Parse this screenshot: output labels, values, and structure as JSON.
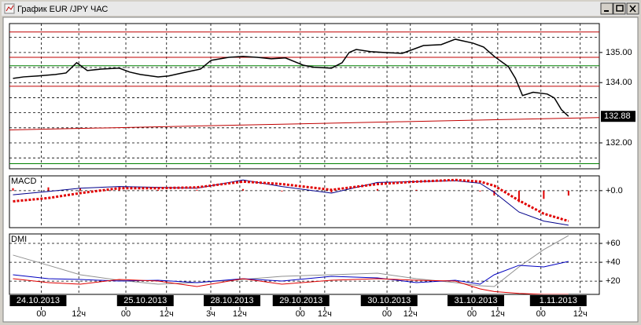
{
  "window": {
    "title": "График EUR /JPY ЧАС"
  },
  "chart_data": [
    {
      "type": "line",
      "x": [
        -8,
        -5,
        -1,
        4,
        7,
        10,
        13,
        17,
        22,
        25,
        28,
        33,
        36,
        41,
        45,
        48,
        53,
        57,
        61,
        65,
        69,
        74,
        77,
        82,
        85,
        87,
        89,
        93,
        97,
        102,
        105,
        108,
        113,
        117,
        122,
        125,
        128,
        132,
        134,
        136,
        139,
        143,
        145,
        147,
        149
      ],
      "values": [
        134.14,
        134.19,
        134.22,
        134.27,
        134.32,
        134.66,
        134.4,
        134.45,
        134.48,
        134.35,
        134.27,
        134.19,
        134.22,
        134.35,
        134.45,
        134.74,
        134.84,
        134.87,
        134.84,
        134.79,
        134.82,
        134.58,
        134.51,
        134.48,
        134.66,
        135.0,
        135.1,
        135.03,
        135.0,
        134.97,
        135.1,
        135.23,
        135.26,
        135.44,
        135.31,
        135.18,
        134.87,
        134.53,
        134.14,
        133.57,
        133.68,
        133.62,
        133.49,
        133.1,
        132.88
      ],
      "color": "#000000",
      "xlim": [
        -9,
        157.7
      ],
      "ylim": [
        131.14,
        135.96
      ],
      "yticks": [
        {
          "value": 135,
          "label": "135.00"
        },
        {
          "value": 134,
          "label": "134.00"
        },
        {
          "value": 132,
          "label": "132.00"
        }
      ],
      "ygrid": [
        131.5,
        132,
        132.5,
        133,
        133.5,
        134,
        134.5,
        135,
        135.5
      ],
      "levels": [
        {
          "value": 135.68,
          "color": "#c00000"
        },
        {
          "value": 134.84,
          "color": "#c00000"
        },
        {
          "value": 134.56,
          "color": "#008000"
        },
        {
          "value": 133.88,
          "color": "#c00000"
        },
        {
          "value": 131.31,
          "color": "#008000"
        }
      ],
      "trend": {
        "x": [
          -9,
          157.7
        ],
        "values": [
          132.43,
          132.84
        ],
        "color": "#c00000"
      },
      "last_value": 132.88
    },
    {
      "type": "macd",
      "label": "MACD",
      "x": [
        -8,
        2,
        11,
        22,
        33,
        44,
        57,
        68,
        82,
        95,
        106,
        117,
        124,
        128,
        135,
        142,
        149
      ],
      "xlim": [
        -9,
        157.7
      ],
      "ylim": [
        -0.45,
        0.18
      ],
      "yticks": [
        {
          "value": 0,
          "label": "+0.0"
        }
      ],
      "series": [
        {
          "color": "#00008b",
          "style": "solid",
          "values": [
            -0.05,
            -0.01,
            0.03,
            0.05,
            0.04,
            0.03,
            0.13,
            0.05,
            -0.03,
            0.1,
            0.11,
            0.12,
            0.09,
            -0.02,
            -0.26,
            -0.37,
            -0.42
          ]
        },
        {
          "color": "#e00000",
          "style": "dotted",
          "values": [
            -0.13,
            -0.09,
            -0.03,
            0.03,
            0.03,
            0.04,
            0.11,
            0.08,
            0.01,
            0.08,
            0.11,
            0.13,
            0.11,
            0.06,
            -0.12,
            -0.28,
            -0.37
          ]
        }
      ],
      "histogram": {
        "color": "#e00000",
        "values": [
          0.03,
          0.04,
          0.03,
          0.02,
          0.01,
          0.01,
          0.02,
          -0.01,
          -0.02,
          0.02,
          0.01,
          0.0,
          -0.01,
          -0.06,
          -0.14,
          -0.1,
          -0.06
        ]
      }
    },
    {
      "type": "line",
      "label": "DMI",
      "x": [
        -8,
        2,
        11,
        22,
        33,
        44,
        57,
        68,
        82,
        95,
        106,
        117,
        124,
        128,
        135,
        142,
        149
      ],
      "xlim": [
        -9,
        157.7
      ],
      "ylim": [
        6,
        70
      ],
      "yticks": [
        {
          "value": 60,
          "label": "+60"
        },
        {
          "value": 40,
          "label": "+40"
        },
        {
          "value": 20,
          "label": "+20"
        }
      ],
      "series": [
        {
          "color": "#909090",
          "values": [
            47.6,
            36.8,
            26.8,
            21,
            16.8,
            18.5,
            21.8,
            25.1,
            26.8,
            28.4,
            22.6,
            18.5,
            15.1,
            14.3,
            35.1,
            53.4,
            68.3
          ]
        },
        {
          "color": "#0000c0",
          "values": [
            26.8,
            22.6,
            21.8,
            20.1,
            21,
            18.5,
            22.6,
            20.1,
            25.1,
            23.5,
            18.5,
            21,
            16.8,
            26.8,
            36.8,
            35.1,
            40.9
          ]
        },
        {
          "color": "#e00000",
          "values": [
            22.6,
            18.5,
            16.8,
            21.8,
            20.1,
            14.3,
            22.6,
            16.8,
            21,
            22.6,
            21,
            20.1,
            11.8,
            9,
            7,
            6,
            6
          ]
        }
      ],
      "xticks": [
        {
          "value": 0,
          "label": "00"
        },
        {
          "value": 10.6,
          "label": "12ч"
        },
        {
          "value": 23.9,
          "label": "00"
        },
        {
          "value": 35.4,
          "label": "12ч"
        },
        {
          "value": 47.9,
          "label": "3ч"
        },
        {
          "value": 56.1,
          "label": "12ч"
        },
        {
          "value": 73.2,
          "label": "00"
        },
        {
          "value": 80.1,
          "label": "12ч"
        },
        {
          "value": 97.7,
          "label": "00"
        },
        {
          "value": 104.3,
          "label": "12ч"
        },
        {
          "value": 121.7,
          "label": "00"
        },
        {
          "value": 129,
          "label": "12ч"
        },
        {
          "value": 141.2,
          "label": "00"
        },
        {
          "value": 152.3,
          "label": "12ч"
        }
      ],
      "date_labels": [
        {
          "value": -0.9,
          "label": "24.10.2013"
        },
        {
          "value": 29.4,
          "label": "25.10.2013"
        },
        {
          "value": 53.9,
          "label": "28.10.2013"
        },
        {
          "value": 73.4,
          "label": "29.10.2013"
        },
        {
          "value": 98.3,
          "label": "30.10.2013"
        },
        {
          "value": 122.8,
          "label": "31.10.2013"
        },
        {
          "value": 146.1,
          "label": "1.11.2013"
        }
      ]
    }
  ]
}
